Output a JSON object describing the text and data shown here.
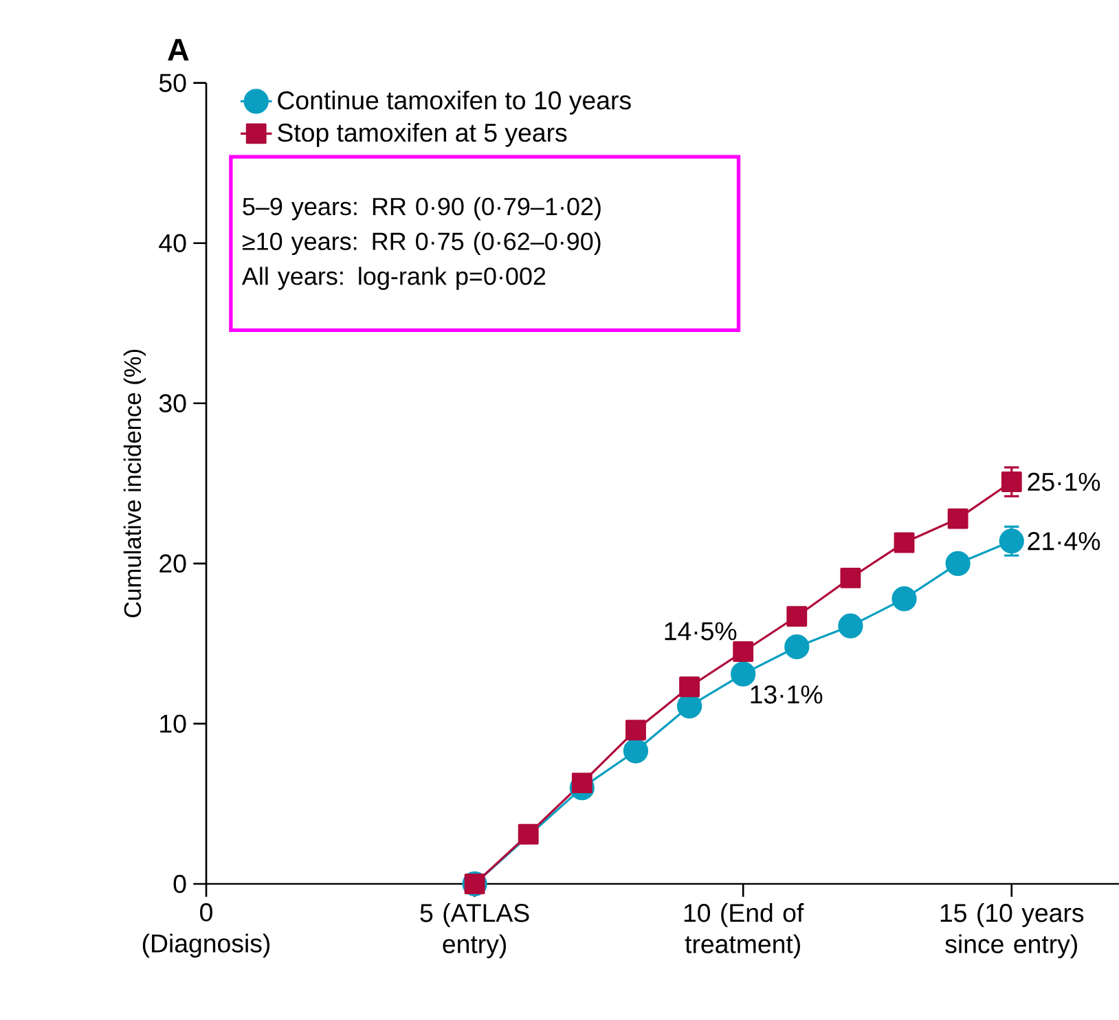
{
  "chart_data": {
    "type": "line",
    "title": "A",
    "ylabel": "Cumulative incidence (%)",
    "x": [
      5,
      6,
      7,
      8,
      9,
      10,
      11,
      12,
      13,
      14,
      15
    ],
    "xlim": [
      0,
      17
    ],
    "ylim": [
      0,
      50
    ],
    "xticks": [
      {
        "value": 0,
        "label": "0 (Diagnosis)"
      },
      {
        "value": 5,
        "label": "5 (ATLAS entry)"
      },
      {
        "value": 10,
        "label": "10 (End of treatment)"
      },
      {
        "value": 15,
        "label": "15 (10 years since entry)"
      }
    ],
    "yticks": [
      0,
      10,
      20,
      30,
      40,
      50
    ],
    "series": [
      {
        "name": "Continue tamoxifen to 10 years",
        "color": "#0a9fc0",
        "marker": "circle",
        "values": [
          0,
          null,
          6.0,
          8.3,
          11.1,
          13.1,
          14.8,
          16.1,
          17.8,
          20.0,
          21.4
        ],
        "errors": [
          null,
          null,
          null,
          null,
          null,
          null,
          null,
          null,
          null,
          null,
          0.9
        ],
        "value_labels": [
          null,
          null,
          null,
          null,
          null,
          "13·1%",
          null,
          null,
          null,
          null,
          "21·4%"
        ]
      },
      {
        "name": "Stop tamoxifen at 5 years",
        "color": "#b0093a",
        "marker": "square",
        "values": [
          0,
          3.1,
          6.3,
          9.6,
          12.3,
          14.5,
          16.7,
          19.1,
          21.3,
          22.8,
          25.1
        ],
        "errors": [
          null,
          null,
          null,
          null,
          null,
          null,
          null,
          null,
          null,
          null,
          0.9
        ],
        "value_labels": [
          null,
          null,
          null,
          null,
          null,
          "14·5%",
          null,
          null,
          null,
          null,
          "25·1%"
        ]
      }
    ],
    "annotations": [
      "5–9 years: RR 0·90 (0·79–1·02)",
      "≥10 years: RR 0·75 (0·62–0·90)",
      "All years: log-rank p=0·002"
    ],
    "legend": "top left",
    "grid": false
  }
}
